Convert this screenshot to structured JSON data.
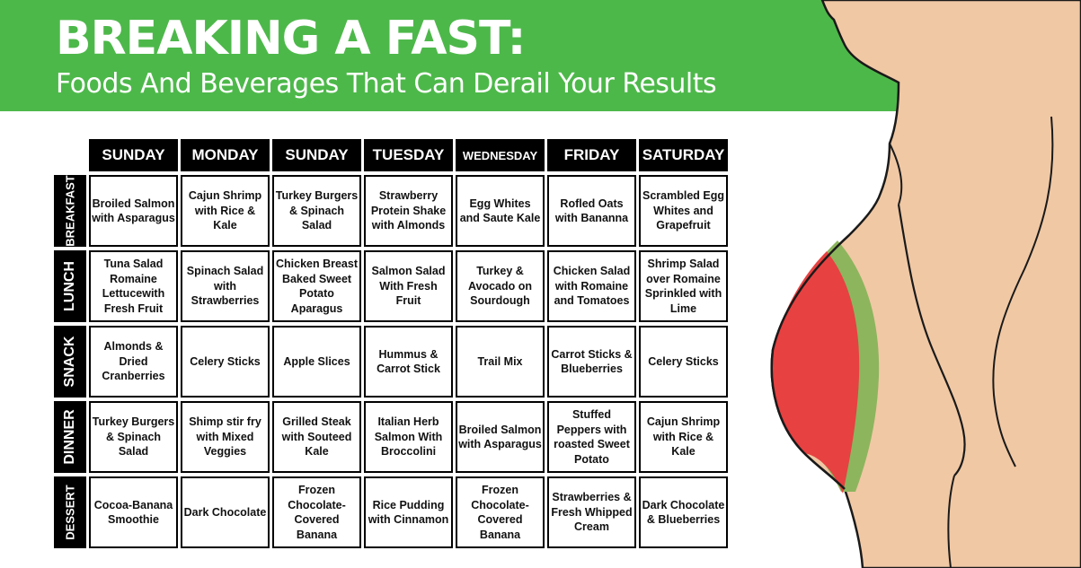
{
  "header": {
    "title": "BREAKING A FAST:",
    "subtitle": "Foods And Beverages That Can Derail Your Results"
  },
  "days": [
    "SUNDAY",
    "MONDAY",
    "SUNDAY",
    "TUESDAY",
    "WEDNESDAY",
    "FRIDAY",
    "SATURDAY"
  ],
  "meals": [
    {
      "label": "BREAKFAST",
      "items": [
        "Broiled Salmon with Asparagus",
        "Cajun Shrimp with Rice & Kale",
        "Turkey Burgers & Spinach Salad",
        "Strawberry Protein Shake with Almonds",
        "Egg Whites and Saute Kale",
        "Rofled Oats with Bananna",
        "Scrambled Egg Whites and Grapefruit"
      ]
    },
    {
      "label": "LUNCH",
      "items": [
        "Tuna Salad Romaine Lettucewith Fresh Fruit",
        "Spinach Salad with Strawberries",
        "Chicken Breast Baked Sweet Potato Aparagus",
        "Salmon Salad With Fresh Fruit",
        "Turkey & Avocado on Sourdough",
        "Chicken Salad with Romaine and Tomatoes",
        "Shrimp Salad over Romaine Sprinkled with Lime"
      ]
    },
    {
      "label": "SNACK",
      "items": [
        "Almonds & Dried Cranberries",
        "Celery Sticks",
        "Apple Slices",
        "Hummus & Carrot Stick",
        "Trail Mix",
        "Carrot Sticks & Blueberries",
        "Celery Sticks"
      ]
    },
    {
      "label": "DINNER",
      "items": [
        "Turkey Burgers & Spinach Salad",
        "Shimp stir fry with Mixed Veggies",
        "Grilled Steak with Souteed Kale",
        "Italian Herb Salmon With Broccolini",
        "Broiled Salmon with Asparagus",
        "Stuffed Peppers with roasted Sweet Potato",
        "Cajun Shrimp with Rice & Kale"
      ]
    },
    {
      "label": "DESSERT",
      "items": [
        "Cocoa-Banana Smoothie",
        "Dark Chocolate",
        "Frozen Chocolate-Covered Banana",
        "Rice Pudding with Cinnamon",
        "Frozen Chocolate-Covered Banana",
        "Strawberries & Fresh Whipped Cream",
        "Dark Chocolate & Blueberries"
      ]
    }
  ],
  "colors": {
    "banner": "#4db84a",
    "skin": "#f0c8a4",
    "belly": "#e74141",
    "belly_edge": "#8db55e",
    "hair": "#4e3524"
  }
}
